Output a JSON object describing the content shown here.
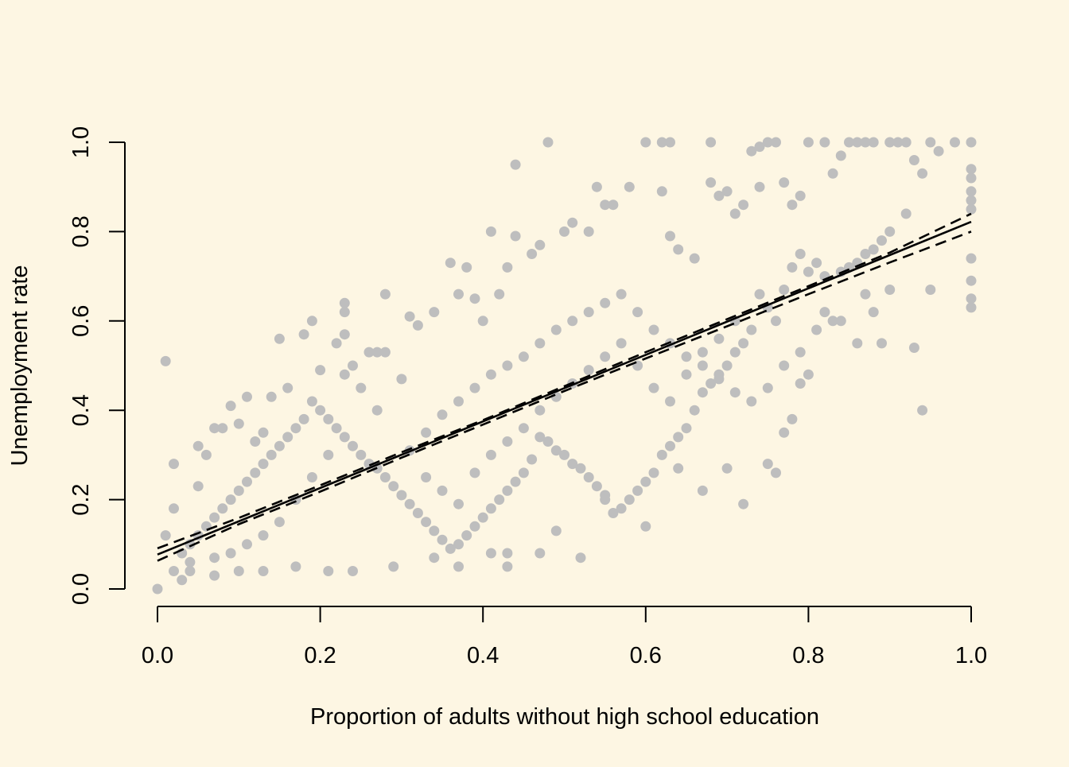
{
  "colors": {
    "background": "#fdf6e3",
    "points": "#bebebe",
    "fit_line": "#000000",
    "confidence_band": "#000000",
    "axes": "#000000"
  },
  "chart_data": {
    "type": "scatter",
    "title": "",
    "xlabel": "Proportion of adults without high school education",
    "ylabel": "Unemployment rate",
    "xlim": [
      0,
      1
    ],
    "ylim": [
      0,
      1
    ],
    "x_ticks": [
      0,
      0.2,
      0.4,
      0.6,
      0.8,
      1
    ],
    "x_tick_labels": [
      "0.0",
      "0.2",
      "0.4",
      "0.6",
      "0.8",
      "1.0"
    ],
    "y_ticks": [
      0,
      0.2,
      0.4,
      0.6,
      0.8,
      1
    ],
    "y_tick_labels": [
      "0.0",
      "0.2",
      "0.4",
      "0.6",
      "0.8",
      "1.0"
    ],
    "grid": false,
    "legend": "none",
    "box": false,
    "fit_line": {
      "style": "solid",
      "x": [
        0,
        1
      ],
      "y": [
        0.077,
        0.822
      ]
    },
    "confidence_band": {
      "style": "dashed",
      "x": [
        0,
        0.1,
        0.2,
        0.3,
        0.4,
        0.5,
        0.6,
        0.7,
        0.8,
        0.9,
        1.0
      ],
      "lower": [
        0.063,
        0.145,
        0.218,
        0.294,
        0.368,
        0.443,
        0.516,
        0.588,
        0.66,
        0.731,
        0.8
      ],
      "upper": [
        0.091,
        0.159,
        0.232,
        0.306,
        0.378,
        0.454,
        0.53,
        0.604,
        0.678,
        0.753,
        0.84
      ]
    },
    "points": [
      [
        0,
        0
      ],
      [
        0.01,
        0.51
      ],
      [
        0.02,
        0.28
      ],
      [
        0.02,
        0.18
      ],
      [
        0.01,
        0.12
      ],
      [
        0.03,
        0.02
      ],
      [
        0.02,
        0.04
      ],
      [
        0.04,
        0.06
      ],
      [
        0.05,
        0.23
      ],
      [
        0.05,
        0.32
      ],
      [
        0.06,
        0.3
      ],
      [
        0.07,
        0.36
      ],
      [
        0.08,
        0.36
      ],
      [
        0.09,
        0.41
      ],
      [
        0.1,
        0.37
      ],
      [
        0.11,
        0.43
      ],
      [
        0.12,
        0.33
      ],
      [
        0.13,
        0.35
      ],
      [
        0.14,
        0.43
      ],
      [
        0.15,
        0.56
      ],
      [
        0.16,
        0.45
      ],
      [
        0.18,
        0.57
      ],
      [
        0.19,
        0.6
      ],
      [
        0.2,
        0.49
      ],
      [
        0.22,
        0.55
      ],
      [
        0.23,
        0.57
      ],
      [
        0.23,
        0.62
      ],
      [
        0.23,
        0.64
      ],
      [
        0.24,
        0.5
      ],
      [
        0.26,
        0.53
      ],
      [
        0.27,
        0.53
      ],
      [
        0.28,
        0.53
      ],
      [
        0.28,
        0.66
      ],
      [
        0.3,
        0.47
      ],
      [
        0.31,
        0.61
      ],
      [
        0.32,
        0.59
      ],
      [
        0.34,
        0.62
      ],
      [
        0.36,
        0.73
      ],
      [
        0.37,
        0.66
      ],
      [
        0.38,
        0.72
      ],
      [
        0.39,
        0.65
      ],
      [
        0.4,
        0.6
      ],
      [
        0.41,
        0.8
      ],
      [
        0.42,
        0.66
      ],
      [
        0.43,
        0.72
      ],
      [
        0.44,
        0.79
      ],
      [
        0.44,
        0.95
      ],
      [
        0.46,
        0.75
      ],
      [
        0.47,
        0.77
      ],
      [
        0.48,
        1.0
      ],
      [
        0.5,
        0.8
      ],
      [
        0.51,
        0.82
      ],
      [
        0.53,
        0.8
      ],
      [
        0.54,
        0.9
      ],
      [
        0.55,
        0.86
      ],
      [
        0.56,
        0.86
      ],
      [
        0.58,
        0.9
      ],
      [
        0.6,
        1.0
      ],
      [
        0.62,
        1.0
      ],
      [
        0.62,
        0.89
      ],
      [
        0.63,
        1.0
      ],
      [
        0.63,
        0.79
      ],
      [
        0.64,
        0.76
      ],
      [
        0.66,
        0.74
      ],
      [
        0.68,
        1.0
      ],
      [
        0.68,
        0.91
      ],
      [
        0.69,
        0.88
      ],
      [
        0.7,
        0.89
      ],
      [
        0.71,
        0.84
      ],
      [
        0.72,
        0.86
      ],
      [
        0.73,
        0.98
      ],
      [
        0.74,
        0.99
      ],
      [
        0.74,
        0.9
      ],
      [
        0.75,
        1.0
      ],
      [
        0.76,
        1.0
      ],
      [
        0.77,
        0.91
      ],
      [
        0.78,
        0.86
      ],
      [
        0.79,
        0.88
      ],
      [
        0.8,
        1.0
      ],
      [
        0.82,
        1.0
      ],
      [
        0.83,
        0.93
      ],
      [
        0.84,
        0.97
      ],
      [
        0.85,
        1.0
      ],
      [
        0.86,
        1.0
      ],
      [
        0.87,
        1.0
      ],
      [
        0.88,
        1.0
      ],
      [
        0.9,
        1.0
      ],
      [
        0.91,
        1.0
      ],
      [
        0.92,
        1.0
      ],
      [
        0.93,
        0.96
      ],
      [
        0.94,
        0.93
      ],
      [
        0.95,
        1.0
      ],
      [
        0.96,
        0.98
      ],
      [
        0.98,
        1.0
      ],
      [
        1.0,
        1.0
      ],
      [
        1.0,
        0.94
      ],
      [
        1.0,
        0.92
      ],
      [
        1.0,
        0.89
      ],
      [
        1.0,
        0.87
      ],
      [
        1.0,
        0.85
      ],
      [
        1.0,
        0.74
      ],
      [
        1.0,
        0.69
      ],
      [
        1.0,
        0.65
      ],
      [
        1.0,
        0.63
      ],
      [
        0.95,
        0.67
      ],
      [
        0.94,
        0.4
      ],
      [
        0.93,
        0.54
      ],
      [
        0.9,
        0.67
      ],
      [
        0.89,
        0.55
      ],
      [
        0.88,
        0.62
      ],
      [
        0.87,
        0.66
      ],
      [
        0.86,
        0.55
      ],
      [
        0.84,
        0.6
      ],
      [
        0.83,
        0.6
      ],
      [
        0.82,
        0.62
      ],
      [
        0.81,
        0.58
      ],
      [
        0.8,
        0.48
      ],
      [
        0.79,
        0.46
      ],
      [
        0.78,
        0.38
      ],
      [
        0.77,
        0.35
      ],
      [
        0.76,
        0.26
      ],
      [
        0.75,
        0.28
      ],
      [
        0.72,
        0.19
      ],
      [
        0.7,
        0.27
      ],
      [
        0.67,
        0.22
      ],
      [
        0.64,
        0.27
      ],
      [
        0.6,
        0.14
      ],
      [
        0.55,
        0.2
      ],
      [
        0.52,
        0.07
      ],
      [
        0.49,
        0.13
      ],
      [
        0.47,
        0.08
      ],
      [
        0.43,
        0.05
      ],
      [
        0.43,
        0.08
      ],
      [
        0.41,
        0.08
      ],
      [
        0.37,
        0.05
      ],
      [
        0.34,
        0.07
      ],
      [
        0.29,
        0.05
      ],
      [
        0.24,
        0.04
      ],
      [
        0.21,
        0.04
      ],
      [
        0.17,
        0.05
      ],
      [
        0.13,
        0.04
      ],
      [
        0.1,
        0.04
      ],
      [
        0.07,
        0.03
      ],
      [
        0.04,
        0.04
      ],
      [
        0.92,
        0.84
      ],
      [
        0.9,
        0.8
      ],
      [
        0.89,
        0.78
      ],
      [
        0.88,
        0.76
      ],
      [
        0.87,
        0.75
      ],
      [
        0.86,
        0.73
      ],
      [
        0.85,
        0.72
      ],
      [
        0.84,
        0.71
      ],
      [
        0.82,
        0.7
      ],
      [
        0.81,
        0.73
      ],
      [
        0.8,
        0.71
      ],
      [
        0.79,
        0.75
      ],
      [
        0.78,
        0.72
      ],
      [
        0.77,
        0.67
      ],
      [
        0.76,
        0.6
      ],
      [
        0.75,
        0.63
      ],
      [
        0.74,
        0.66
      ],
      [
        0.73,
        0.58
      ],
      [
        0.72,
        0.55
      ],
      [
        0.71,
        0.53
      ],
      [
        0.7,
        0.5
      ],
      [
        0.69,
        0.48
      ],
      [
        0.68,
        0.46
      ],
      [
        0.67,
        0.44
      ],
      [
        0.66,
        0.4
      ],
      [
        0.65,
        0.36
      ],
      [
        0.64,
        0.34
      ],
      [
        0.63,
        0.32
      ],
      [
        0.62,
        0.3
      ],
      [
        0.61,
        0.26
      ],
      [
        0.6,
        0.24
      ],
      [
        0.59,
        0.22
      ],
      [
        0.58,
        0.2
      ],
      [
        0.57,
        0.18
      ],
      [
        0.56,
        0.17
      ],
      [
        0.55,
        0.21
      ],
      [
        0.54,
        0.23
      ],
      [
        0.53,
        0.25
      ],
      [
        0.52,
        0.27
      ],
      [
        0.51,
        0.28
      ],
      [
        0.5,
        0.3
      ],
      [
        0.49,
        0.31
      ],
      [
        0.48,
        0.33
      ],
      [
        0.47,
        0.34
      ],
      [
        0.46,
        0.29
      ],
      [
        0.45,
        0.26
      ],
      [
        0.44,
        0.24
      ],
      [
        0.43,
        0.22
      ],
      [
        0.42,
        0.2
      ],
      [
        0.41,
        0.18
      ],
      [
        0.4,
        0.16
      ],
      [
        0.39,
        0.14
      ],
      [
        0.38,
        0.12
      ],
      [
        0.37,
        0.1
      ],
      [
        0.36,
        0.09
      ],
      [
        0.35,
        0.11
      ],
      [
        0.34,
        0.13
      ],
      [
        0.33,
        0.15
      ],
      [
        0.32,
        0.17
      ],
      [
        0.31,
        0.19
      ],
      [
        0.3,
        0.21
      ],
      [
        0.29,
        0.23
      ],
      [
        0.28,
        0.25
      ],
      [
        0.27,
        0.27
      ],
      [
        0.26,
        0.28
      ],
      [
        0.25,
        0.3
      ],
      [
        0.24,
        0.32
      ],
      [
        0.23,
        0.34
      ],
      [
        0.22,
        0.36
      ],
      [
        0.21,
        0.38
      ],
      [
        0.2,
        0.4
      ],
      [
        0.19,
        0.42
      ],
      [
        0.18,
        0.38
      ],
      [
        0.17,
        0.36
      ],
      [
        0.16,
        0.34
      ],
      [
        0.15,
        0.32
      ],
      [
        0.14,
        0.3
      ],
      [
        0.13,
        0.28
      ],
      [
        0.12,
        0.26
      ],
      [
        0.11,
        0.24
      ],
      [
        0.1,
        0.22
      ],
      [
        0.09,
        0.2
      ],
      [
        0.08,
        0.18
      ],
      [
        0.07,
        0.16
      ],
      [
        0.06,
        0.14
      ],
      [
        0.05,
        0.12
      ],
      [
        0.04,
        0.1
      ],
      [
        0.03,
        0.08
      ],
      [
        0.31,
        0.31
      ],
      [
        0.33,
        0.35
      ],
      [
        0.35,
        0.39
      ],
      [
        0.37,
        0.42
      ],
      [
        0.39,
        0.45
      ],
      [
        0.41,
        0.48
      ],
      [
        0.43,
        0.5
      ],
      [
        0.45,
        0.52
      ],
      [
        0.47,
        0.55
      ],
      [
        0.49,
        0.58
      ],
      [
        0.51,
        0.6
      ],
      [
        0.53,
        0.62
      ],
      [
        0.55,
        0.64
      ],
      [
        0.57,
        0.66
      ],
      [
        0.59,
        0.62
      ],
      [
        0.61,
        0.58
      ],
      [
        0.63,
        0.55
      ],
      [
        0.65,
        0.52
      ],
      [
        0.67,
        0.5
      ],
      [
        0.69,
        0.47
      ],
      [
        0.71,
        0.44
      ],
      [
        0.73,
        0.42
      ],
      [
        0.75,
        0.45
      ],
      [
        0.77,
        0.5
      ],
      [
        0.79,
        0.53
      ],
      [
        0.27,
        0.4
      ],
      [
        0.25,
        0.45
      ],
      [
        0.23,
        0.48
      ],
      [
        0.21,
        0.3
      ],
      [
        0.19,
        0.25
      ],
      [
        0.17,
        0.2
      ],
      [
        0.15,
        0.15
      ],
      [
        0.13,
        0.12
      ],
      [
        0.11,
        0.1
      ],
      [
        0.09,
        0.08
      ],
      [
        0.07,
        0.07
      ],
      [
        0.33,
        0.25
      ],
      [
        0.35,
        0.22
      ],
      [
        0.37,
        0.19
      ],
      [
        0.39,
        0.26
      ],
      [
        0.41,
        0.3
      ],
      [
        0.43,
        0.33
      ],
      [
        0.45,
        0.36
      ],
      [
        0.47,
        0.4
      ],
      [
        0.49,
        0.43
      ],
      [
        0.51,
        0.46
      ],
      [
        0.53,
        0.49
      ],
      [
        0.55,
        0.52
      ],
      [
        0.57,
        0.55
      ],
      [
        0.59,
        0.5
      ],
      [
        0.61,
        0.45
      ],
      [
        0.63,
        0.42
      ],
      [
        0.65,
        0.48
      ],
      [
        0.67,
        0.53
      ],
      [
        0.69,
        0.56
      ],
      [
        0.71,
        0.6
      ]
    ]
  }
}
